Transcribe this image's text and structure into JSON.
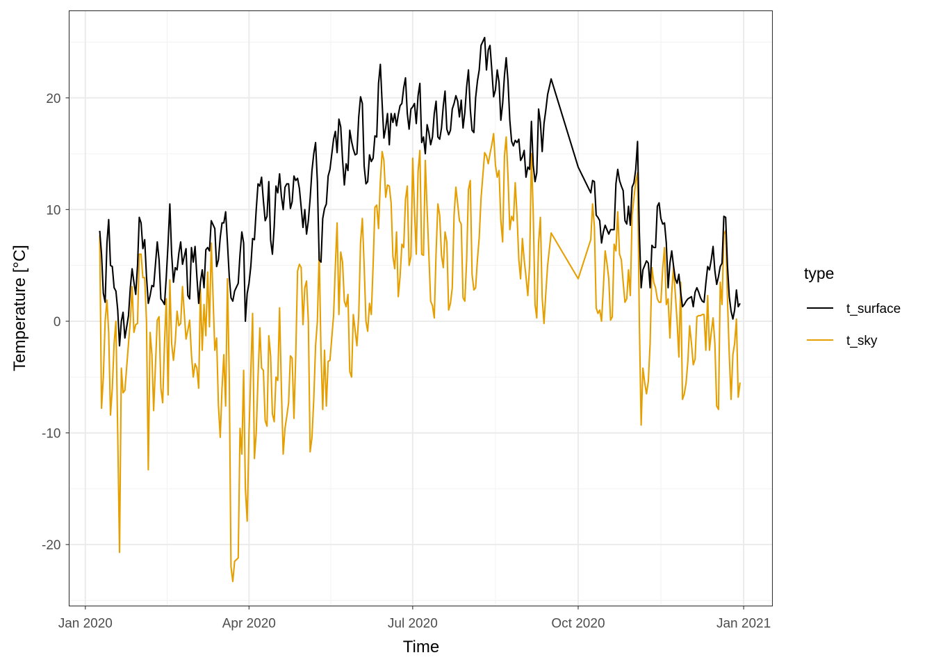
{
  "chart_data": {
    "type": "line",
    "title": "",
    "xlabel": "Time",
    "ylabel": "Temperature [°C]",
    "x_ticks": [
      {
        "date": "2020-01-01",
        "label": "Jan 2020"
      },
      {
        "date": "2020-04-01",
        "label": "Apr 2020"
      },
      {
        "date": "2020-07-01",
        "label": "Jul 2020"
      },
      {
        "date": "2020-10-01",
        "label": "Oct 2020"
      },
      {
        "date": "2021-01-01",
        "label": "Jan 2021"
      }
    ],
    "y_ticks": [
      -20,
      -10,
      0,
      10,
      20
    ],
    "y_tick_labels": [
      "-20",
      "-10",
      "0",
      "10",
      "20"
    ],
    "xlim": [
      "2019-12-23",
      "2021-01-17"
    ],
    "ylim": [
      -25.5,
      27.8
    ],
    "grid": true,
    "legend": {
      "title": "type",
      "placement": "right"
    },
    "x": [
      "2020-01-09",
      "2020-01-10",
      "2020-01-11",
      "2020-01-12",
      "2020-01-13",
      "2020-01-14",
      "2020-01-15",
      "2020-01-16",
      "2020-01-17",
      "2020-01-18",
      "2020-01-19",
      "2020-01-20",
      "2020-01-21",
      "2020-01-22",
      "2020-01-23",
      "2020-01-25",
      "2020-01-26",
      "2020-01-27",
      "2020-01-28",
      "2020-01-29",
      "2020-01-30",
      "2020-01-31",
      "2020-02-01",
      "2020-02-02",
      "2020-02-03",
      "2020-02-04",
      "2020-02-05",
      "2020-02-06",
      "2020-02-07",
      "2020-02-08",
      "2020-02-10",
      "2020-02-11",
      "2020-02-12",
      "2020-02-13",
      "2020-02-14",
      "2020-02-15",
      "2020-02-16",
      "2020-02-17",
      "2020-02-18",
      "2020-02-19",
      "2020-02-20",
      "2020-02-21",
      "2020-02-22",
      "2020-02-23",
      "2020-02-24",
      "2020-02-26",
      "2020-02-27",
      "2020-02-28",
      "2020-02-29",
      "2020-03-01",
      "2020-03-02",
      "2020-03-03",
      "2020-03-04",
      "2020-03-05",
      "2020-03-06",
      "2020-03-07",
      "2020-03-08",
      "2020-03-09",
      "2020-03-10",
      "2020-03-11",
      "2020-03-13",
      "2020-03-14",
      "2020-03-15",
      "2020-03-16",
      "2020-03-17",
      "2020-03-18",
      "2020-03-19",
      "2020-03-20",
      "2020-03-21",
      "2020-03-22",
      "2020-03-23",
      "2020-03-24",
      "2020-03-26",
      "2020-03-27",
      "2020-03-28",
      "2020-03-29",
      "2020-03-30",
      "2020-03-31",
      "2020-04-01",
      "2020-04-02",
      "2020-04-03",
      "2020-04-04",
      "2020-04-05",
      "2020-04-06",
      "2020-04-07",
      "2020-04-08",
      "2020-04-09",
      "2020-04-10",
      "2020-04-11",
      "2020-04-12",
      "2020-04-13",
      "2020-04-14",
      "2020-04-15",
      "2020-04-16",
      "2020-04-17",
      "2020-04-18",
      "2020-04-19",
      "2020-04-20",
      "2020-04-21",
      "2020-04-22",
      "2020-04-23",
      "2020-04-24",
      "2020-04-25",
      "2020-04-26",
      "2020-04-27",
      "2020-04-28",
      "2020-04-29",
      "2020-04-30",
      "2020-05-01",
      "2020-05-02",
      "2020-05-03",
      "2020-05-04",
      "2020-05-05",
      "2020-05-06",
      "2020-05-07",
      "2020-05-08",
      "2020-05-09",
      "2020-05-10",
      "2020-05-11",
      "2020-05-12",
      "2020-05-13",
      "2020-05-14",
      "2020-05-15",
      "2020-05-16",
      "2020-05-18",
      "2020-05-19",
      "2020-05-20",
      "2020-05-21",
      "2020-05-22",
      "2020-05-23",
      "2020-05-24",
      "2020-05-25",
      "2020-05-26",
      "2020-05-27",
      "2020-05-28",
      "2020-05-29",
      "2020-05-30",
      "2020-05-31",
      "2020-06-01",
      "2020-06-02",
      "2020-06-03",
      "2020-06-04",
      "2020-06-05",
      "2020-06-06",
      "2020-06-07",
      "2020-06-08",
      "2020-06-09",
      "2020-06-10",
      "2020-06-11",
      "2020-06-12",
      "2020-06-13",
      "2020-06-14",
      "2020-06-15",
      "2020-06-16",
      "2020-06-17",
      "2020-06-18",
      "2020-06-19",
      "2020-06-20",
      "2020-06-21",
      "2020-06-22",
      "2020-06-23",
      "2020-06-24",
      "2020-06-25",
      "2020-06-26",
      "2020-06-27",
      "2020-06-28",
      "2020-06-29",
      "2020-06-30",
      "2020-07-01",
      "2020-07-02",
      "2020-07-03",
      "2020-07-04",
      "2020-07-05",
      "2020-07-06",
      "2020-07-07",
      "2020-07-08",
      "2020-07-09",
      "2020-07-10",
      "2020-07-11",
      "2020-07-12",
      "2020-07-13",
      "2020-07-14",
      "2020-07-15",
      "2020-07-16",
      "2020-07-17",
      "2020-07-18",
      "2020-07-19",
      "2020-07-20",
      "2020-07-21",
      "2020-07-22",
      "2020-07-23",
      "2020-07-24",
      "2020-07-25",
      "2020-07-26",
      "2020-07-27",
      "2020-07-28",
      "2020-07-29",
      "2020-07-30",
      "2020-07-31",
      "2020-08-01",
      "2020-08-02",
      "2020-08-03",
      "2020-08-04",
      "2020-08-05",
      "2020-08-06",
      "2020-08-07",
      "2020-08-08",
      "2020-08-10",
      "2020-08-11",
      "2020-08-12",
      "2020-08-13",
      "2020-08-14",
      "2020-08-15",
      "2020-08-16",
      "2020-08-17",
      "2020-08-18",
      "2020-08-19",
      "2020-08-20",
      "2020-08-21",
      "2020-08-22",
      "2020-08-23",
      "2020-08-24",
      "2020-08-25",
      "2020-08-26",
      "2020-08-27",
      "2020-08-28",
      "2020-08-29",
      "2020-08-30",
      "2020-08-31",
      "2020-09-01",
      "2020-09-02",
      "2020-09-03",
      "2020-09-04",
      "2020-09-05",
      "2020-09-06",
      "2020-09-07",
      "2020-09-08",
      "2020-09-09",
      "2020-09-10",
      "2020-09-11",
      "2020-09-12",
      "2020-09-13",
      "2020-09-14",
      "2020-09-16",
      "2020-10-01",
      "2020-10-08",
      "2020-10-09",
      "2020-10-10",
      "2020-10-11",
      "2020-10-12",
      "2020-10-13",
      "2020-10-14",
      "2020-10-15",
      "2020-10-16",
      "2020-10-17",
      "2020-10-18",
      "2020-10-19",
      "2020-10-20",
      "2020-10-21",
      "2020-10-22",
      "2020-10-23",
      "2020-10-24",
      "2020-10-25",
      "2020-10-26",
      "2020-10-27",
      "2020-10-28",
      "2020-10-29",
      "2020-10-30",
      "2020-10-31",
      "2020-11-01",
      "2020-11-02",
      "2020-11-03",
      "2020-11-04",
      "2020-11-05",
      "2020-11-06",
      "2020-11-07",
      "2020-11-08",
      "2020-11-09",
      "2020-11-10",
      "2020-11-11",
      "2020-11-12",
      "2020-11-13",
      "2020-11-14",
      "2020-11-15",
      "2020-11-16",
      "2020-11-17",
      "2020-11-18",
      "2020-11-19",
      "2020-11-20",
      "2020-11-21",
      "2020-11-22",
      "2020-11-23",
      "2020-11-24",
      "2020-11-25",
      "2020-11-26",
      "2020-11-27",
      "2020-11-28",
      "2020-11-29",
      "2020-11-30",
      "2020-12-01",
      "2020-12-02",
      "2020-12-03",
      "2020-12-04",
      "2020-12-05",
      "2020-12-06",
      "2020-12-07",
      "2020-12-08",
      "2020-12-09",
      "2020-12-10",
      "2020-12-11",
      "2020-12-12",
      "2020-12-13",
      "2020-12-14",
      "2020-12-15",
      "2020-12-16",
      "2020-12-17",
      "2020-12-18",
      "2020-12-19",
      "2020-12-20",
      "2020-12-21",
      "2020-12-22",
      "2020-12-23",
      "2020-12-24",
      "2020-12-25",
      "2020-12-26",
      "2020-12-27",
      "2020-12-28",
      "2020-12-29",
      "2020-12-30"
    ],
    "series": [
      {
        "name": "t_surface",
        "color": "#000000",
        "values": [
          8.1,
          6,
          2.5,
          1.7,
          7,
          9.1,
          5,
          4.9,
          3,
          2.7,
          1,
          -2.2,
          0,
          0.8,
          -1.5,
          0.5,
          3,
          4.7,
          3.5,
          2.4,
          5,
          9.3,
          8.8,
          6.5,
          7.3,
          4,
          1.6,
          2.3,
          3.2,
          3.1,
          7.1,
          5.5,
          2,
          1.8,
          1.5,
          4,
          7,
          10.5,
          6,
          3.5,
          4.8,
          4.6,
          6.1,
          7.1,
          5.1,
          6.5,
          2.3,
          2,
          6.6,
          5.3,
          6.7,
          4,
          1.6,
          3.5,
          4.6,
          3,
          6.4,
          6.6,
          6.3,
          9,
          8.3,
          4.9,
          5.5,
          7.5,
          8.8,
          8.8,
          9.8,
          7,
          4,
          2.1,
          1.8,
          2.7,
          3.4,
          6,
          8,
          7,
          0,
          2.5,
          3.4,
          4.9,
          7.4,
          7.3,
          10,
          12.3,
          12.1,
          12.9,
          10.8,
          9,
          9.4,
          12.5,
          7.3,
          6,
          8.5,
          12.1,
          11.5,
          13.2,
          11.2,
          10,
          12,
          12.3,
          12.3,
          10.1,
          10.7,
          13,
          12.6,
          12.8,
          11.9,
          10.2,
          8.4,
          10,
          7.8,
          9,
          11,
          13.5,
          15,
          16,
          12.5,
          5.5,
          5.3,
          9.2,
          10.1,
          10.5,
          13,
          13.6,
          16.3,
          17,
          15.1,
          18.1,
          17.4,
          14.5,
          12.2,
          14.1,
          13.5,
          17.1,
          16.1,
          15.4,
          14.9,
          15,
          18.3,
          20.1,
          19.5,
          13.9,
          12.3,
          12.5,
          14.9,
          14.3,
          14.6,
          16.6,
          16.5,
          21.3,
          23,
          19.5,
          16.4,
          17.3,
          18.6,
          15.8,
          18.6,
          17.8,
          18.6,
          17.5,
          18.5,
          19.3,
          19.5,
          20.9,
          21.8,
          18.6,
          17.2,
          19,
          19.2,
          19.5,
          17.7,
          20.2,
          21.3,
          16,
          16.5,
          15,
          17.6,
          16.9,
          15.8,
          16.5,
          18.6,
          19.7,
          16.5,
          16.3,
          17.3,
          19.3,
          20.6,
          17.2,
          16.7,
          17.1,
          19,
          19.5,
          20.2,
          19.7,
          18.3,
          19.8,
          17.3,
          18.7,
          21,
          22.5,
          19,
          17.1,
          16.9,
          20,
          21.5,
          22.5,
          24.7,
          25.4,
          22.5,
          24.3,
          24.7,
          22.5,
          20.1,
          20.7,
          22.5,
          21.4,
          18,
          19.5,
          22,
          23.6,
          21.5,
          18,
          16.1,
          15.7,
          16.2,
          16,
          16.3,
          14.4,
          14.7,
          15.3,
          12.9,
          13.8,
          13.6,
          17.9,
          14,
          12.5,
          13.3,
          19,
          17.8,
          15.2,
          17.7,
          18.9,
          20.3,
          21.7,
          13.8,
          11.5,
          12.6,
          12.5,
          9.5,
          9.3,
          9,
          7,
          8,
          8.6,
          8.2,
          7.8,
          8.2,
          8.2,
          8.2,
          12.3,
          13.6,
          12.6,
          12.1,
          11.7,
          9,
          8.7,
          10.3,
          8.6,
          12,
          12.4,
          13.6,
          16.1,
          8,
          3,
          4.6,
          5,
          5.4,
          5.2,
          3,
          6.8,
          6.6,
          6.6,
          10.3,
          10.6,
          9.2,
          8.7,
          8.8,
          7,
          3,
          5.2,
          6.3,
          5,
          3.8,
          3.4,
          4.2,
          2.6,
          1.3,
          1.5,
          1.8,
          2,
          2.1,
          2.2,
          1.3,
          2.6,
          3,
          2.6,
          2.1,
          1.8,
          1.7,
          3.4,
          4.9,
          4.6,
          5.5,
          6.7,
          4.5,
          3.3,
          4,
          4.9,
          5.2,
          9.4,
          9.3,
          5,
          2.2,
          0.9,
          0.2,
          1,
          2.8,
          1.3,
          1.6
        ]
      },
      {
        "name": "t_sky",
        "color": "#E69F00",
        "values": [
          7.7,
          -7.8,
          -5,
          0,
          1.9,
          -1,
          -8.4,
          -6,
          -2,
          0,
          -10,
          -20.7,
          -4.2,
          -6.4,
          -6.2,
          -2,
          0,
          3.1,
          -1,
          -0.3,
          -0.2,
          6,
          6,
          3.9,
          3.9,
          0,
          -13.3,
          -1,
          -3,
          -8,
          0.1,
          0.4,
          -6,
          -7.3,
          -2,
          2,
          -6.6,
          3.7,
          -2,
          -3.5,
          -1.8,
          0.9,
          -0.4,
          -0.2,
          3.1,
          -1.6,
          -0.8,
          0.1,
          -3,
          -5,
          -3.8,
          -4.2,
          -6,
          2.9,
          -2.6,
          1.5,
          -1.3,
          4.4,
          -0.5,
          7,
          -2.6,
          -1.5,
          -7.5,
          -10.4,
          -6,
          -3,
          -7.6,
          3.8,
          -5,
          -22,
          -23.3,
          -21.5,
          -21.2,
          -9.6,
          -11.9,
          -4.4,
          -15,
          -17.9,
          -10,
          -4.6,
          0.7,
          -12.3,
          -10,
          -5,
          -0.6,
          -4.2,
          -4.4,
          -8.9,
          -9.4,
          -1.3,
          -3.1,
          -8.3,
          -9,
          -5,
          -5.3,
          1.2,
          -6,
          -11.9,
          -9.6,
          -8.5,
          -7.3,
          -3.1,
          -3.3,
          -8.7,
          -3,
          4.5,
          5.1,
          4.8,
          -0.3,
          3,
          3.6,
          0,
          -11.7,
          -10.4,
          -7,
          -2.2,
          0,
          6.2,
          -2.8,
          -7.9,
          -2.6,
          -7.6,
          -3.6,
          -3.5,
          0.5,
          5,
          8.8,
          0.6,
          6.2,
          5.3,
          1.8,
          1.3,
          2.4,
          -4.5,
          -5,
          0.6,
          -0.8,
          -2.2,
          0.5,
          7,
          9.2,
          5,
          0,
          -0.9,
          1.6,
          0.6,
          5,
          10.2,
          10.4,
          8.3,
          12.5,
          15.2,
          14.4,
          11.1,
          12.2,
          12.1,
          10.6,
          5.8,
          4.7,
          8,
          2.2,
          4,
          6.9,
          6.6,
          10.9,
          12.1,
          5,
          5.8,
          14.6,
          10,
          6,
          13.4,
          15.3,
          6,
          5.9,
          14.4,
          10,
          6,
          1.8,
          1.4,
          0.3,
          6.1,
          10.5,
          9.5,
          5.9,
          4.8,
          8,
          7.1,
          1,
          1.6,
          3,
          9.5,
          12,
          10.5,
          9,
          8.7,
          2.1,
          1.8,
          5.5,
          11.8,
          12.6,
          4.2,
          2.8,
          3,
          5.5,
          7.5,
          11,
          15.1,
          14.8,
          14.1,
          15,
          15.8,
          16.8,
          14,
          12.9,
          13.5,
          9,
          7.1,
          14.8,
          16.5,
          13,
          8.2,
          9.4,
          9,
          12.4,
          9.5,
          5.5,
          3.8,
          7.4,
          5.5,
          4,
          2.3,
          5,
          15,
          9.7,
          1.5,
          0.3,
          7,
          9.3,
          2.1,
          -0.2,
          2.5,
          5,
          7.9,
          3.8,
          7.3,
          10.5,
          8.5,
          1.2,
          0.7,
          1,
          0,
          3,
          6.3,
          5.2,
          3.8,
          0.1,
          0.4,
          6.9,
          6.3,
          9.8,
          6,
          5.5,
          3.5,
          1.7,
          2,
          4.6,
          2.3,
          9.5,
          11,
          12.5,
          13.3,
          0,
          -9.3,
          -4.2,
          -5.5,
          -6.5,
          -5.4,
          -2,
          4.8,
          3.5,
          3,
          2,
          1.7,
          1.7,
          4.7,
          6.6,
          1.5,
          2,
          -1.5,
          2.5,
          4.9,
          2.5,
          0,
          -3.2,
          3.5,
          -7,
          -6.5,
          -5.5,
          -3.5,
          -0.4,
          -2,
          -3.9,
          -3.4,
          0.4,
          0.5,
          0.5,
          0.6,
          0.6,
          -2.6,
          2.3,
          -2.6,
          -1,
          0.3,
          -2,
          -7.6,
          -7.9,
          3.5,
          1.5,
          7.8,
          8.1,
          2,
          -3,
          -7,
          -3,
          -2,
          0.2,
          -6.8,
          -5.5
        ]
      }
    ]
  }
}
